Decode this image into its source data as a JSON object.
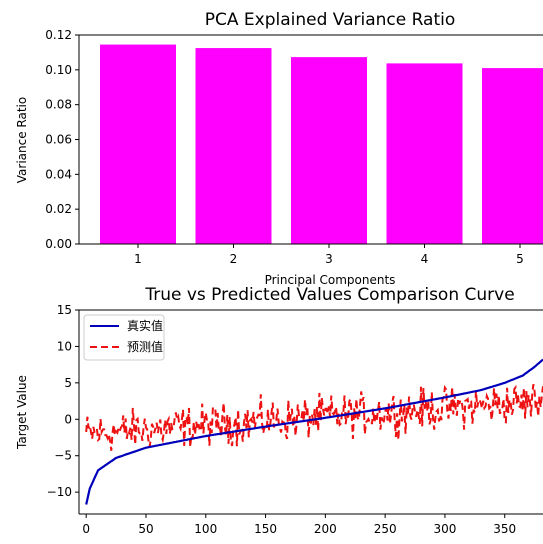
{
  "chart_data": [
    {
      "type": "bar",
      "title": "PCA Explained Variance Ratio",
      "xlabel": "Principal Components",
      "ylabel": "Variance Ratio",
      "categories": [
        "1",
        "2",
        "3",
        "4",
        "5"
      ],
      "values": [
        0.1145,
        0.1125,
        0.1073,
        0.1037,
        0.101
      ],
      "ylim": [
        0,
        0.12
      ],
      "yticks": [
        "0.00",
        "0.02",
        "0.04",
        "0.06",
        "0.08",
        "0.10",
        "0.12"
      ],
      "bar_color": "#ff00ff",
      "grid": false
    },
    {
      "type": "line",
      "title": "True vs Predicted Values Comparison Curve",
      "xlabel": "",
      "ylabel": "Target Value",
      "xlim": [
        -6,
        382
      ],
      "ylim": [
        -13,
        15
      ],
      "xticks": [
        "0",
        "50",
        "100",
        "150",
        "200",
        "250",
        "300",
        "350"
      ],
      "yticks": [
        "−10",
        "−5",
        "0",
        "5",
        "10",
        "15"
      ],
      "n_points": 400,
      "legend_position": "top-left",
      "grid": false,
      "series": [
        {
          "name": "真实值",
          "color": "#0000bb",
          "style": "solid",
          "profile_x": [
            0,
            3,
            10,
            25,
            50,
            100,
            150,
            200,
            250,
            300,
            330,
            350,
            365,
            375,
            382
          ],
          "profile_y": [
            -11.7,
            -9.5,
            -7.0,
            -5.3,
            -3.9,
            -2.3,
            -1.0,
            0.2,
            1.5,
            3.0,
            4.0,
            5.0,
            6.0,
            7.2,
            8.2
          ]
        },
        {
          "name": "预测值",
          "color": "#ee1111",
          "style": "dashed",
          "trend_x": [
            0,
            382
          ],
          "trend_y": [
            -2.0,
            2.5
          ],
          "noise_amplitude": 2.3
        }
      ]
    }
  ]
}
